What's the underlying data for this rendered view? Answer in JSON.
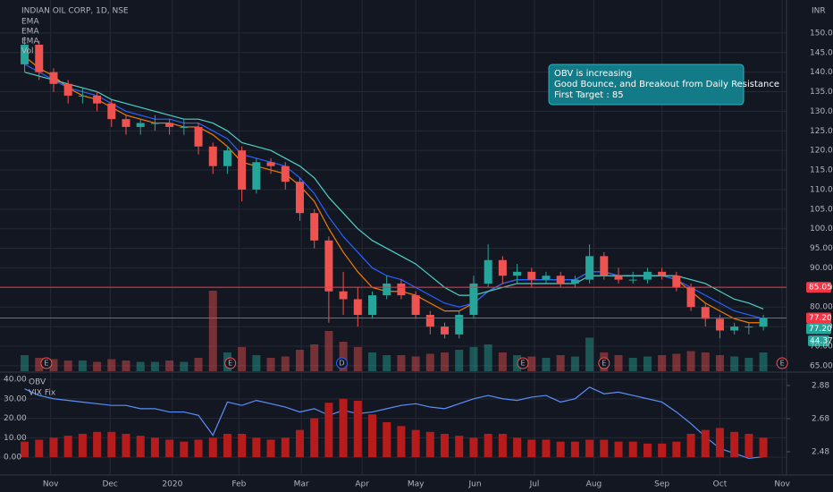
{
  "chart_data": {
    "type": "candlestick",
    "title": "INDIAN OIL CORP, 1D, NSE",
    "currency": "INR",
    "grid": true,
    "xlim": [
      -1.7,
      52.6
    ],
    "xticks": [
      {
        "value": 1.8,
        "label": "Nov"
      },
      {
        "value": 5.9,
        "label": "Dec"
      },
      {
        "value": 10.2,
        "label": "2020"
      },
      {
        "value": 14.8,
        "label": "Feb"
      },
      {
        "value": 19.1,
        "label": "Mar"
      },
      {
        "value": 23.3,
        "label": "Apr"
      },
      {
        "value": 27.0,
        "label": "May"
      },
      {
        "value": 31.1,
        "label": "Jun"
      },
      {
        "value": 35.2,
        "label": "Jul"
      },
      {
        "value": 39.3,
        "label": "Aug"
      },
      {
        "value": 44.0,
        "label": "Sep"
      },
      {
        "value": 48.0,
        "label": "Oct"
      },
      {
        "value": 52.3,
        "label": "Nov"
      }
    ],
    "ylim": [
      63.6,
      156.6
    ],
    "yticks": [
      {
        "value": 65,
        "label": "65.00"
      },
      {
        "value": 70,
        "label": "70.00"
      },
      {
        "value": 75,
        "label": "75.00"
      },
      {
        "value": 80,
        "label": "80.00"
      },
      {
        "value": 85,
        "label": "85.00"
      },
      {
        "value": 90,
        "label": "90.00"
      },
      {
        "value": 95,
        "label": "95.00"
      },
      {
        "value": 100,
        "label": "100.00"
      },
      {
        "value": 105,
        "label": "105.00"
      },
      {
        "value": 110,
        "label": "110.00"
      },
      {
        "value": 115,
        "label": "115.00"
      },
      {
        "value": 120,
        "label": "120.00"
      },
      {
        "value": 125,
        "label": "125.00"
      },
      {
        "value": 130,
        "label": "130.00"
      },
      {
        "value": 135,
        "label": "135.00"
      },
      {
        "value": 140,
        "label": "140.00"
      },
      {
        "value": 145,
        "label": "145.00"
      },
      {
        "value": 150,
        "label": "150.00"
      }
    ],
    "up_color": "#26a69a",
    "down_color": "#ef5350",
    "candles": {
      "open": [
        142,
        147,
        140,
        137,
        134,
        134,
        132,
        128,
        126,
        127,
        127,
        126,
        126,
        121,
        116,
        120,
        110,
        117,
        116,
        112,
        104,
        97,
        84,
        82,
        78,
        83,
        86,
        83,
        78,
        75,
        73,
        78,
        86,
        92,
        88,
        89,
        87,
        88,
        86,
        87,
        93,
        88,
        87,
        87,
        89,
        88,
        85,
        80,
        77,
        74,
        75,
        75
      ],
      "high": [
        149,
        148,
        141,
        138,
        136,
        135,
        133,
        129,
        128,
        129,
        128,
        128,
        127,
        122,
        121,
        121,
        118,
        118,
        117,
        113,
        105,
        98,
        89,
        85,
        84,
        88,
        87,
        84,
        79,
        76,
        79,
        88,
        96,
        93,
        91,
        90,
        89,
        89,
        88,
        96,
        94,
        90,
        89,
        90,
        90,
        89,
        86,
        81,
        78,
        76,
        76,
        78
      ],
      "low": [
        140,
        138,
        135,
        132,
        132,
        130,
        126,
        124,
        124,
        125,
        124,
        124,
        119,
        114,
        114,
        107,
        109,
        114,
        110,
        102,
        95,
        76,
        78,
        75,
        77,
        82,
        82,
        77,
        73,
        72,
        72,
        77,
        85,
        86,
        86,
        85,
        86,
        85,
        85,
        86,
        87,
        86,
        86,
        86,
        87,
        84,
        79,
        75,
        72,
        73,
        73,
        74
      ],
      "close": [
        147,
        140,
        137,
        134,
        134,
        132,
        128,
        126,
        127,
        127,
        126,
        126,
        121,
        116,
        120,
        110,
        117,
        116,
        112,
        104,
        97,
        84,
        82,
        78,
        83,
        86,
        83,
        78,
        75,
        73,
        78,
        86,
        92,
        88,
        89,
        87,
        88,
        86,
        87,
        93,
        88,
        87,
        87,
        89,
        88,
        85,
        80,
        77,
        74,
        75,
        75,
        77.2
      ]
    },
    "volume": {
      "name": "Vol",
      "values": [
        12,
        10,
        9,
        8,
        8,
        7,
        9,
        8,
        7,
        7,
        8,
        7,
        10,
        60,
        14,
        18,
        12,
        10,
        11,
        16,
        20,
        30,
        22,
        18,
        14,
        12,
        12,
        11,
        13,
        14,
        16,
        18,
        20,
        14,
        12,
        11,
        10,
        12,
        11,
        25,
        14,
        12,
        10,
        11,
        12,
        13,
        15,
        14,
        12,
        11,
        10,
        14
      ]
    },
    "series": [
      {
        "name": "EMA",
        "color": "#f57c00",
        "values": [
          144,
          141,
          139,
          136,
          134,
          133,
          131,
          129,
          128,
          127,
          127,
          126,
          126,
          124,
          121,
          117,
          116,
          115,
          114,
          111,
          107,
          100,
          94,
          89,
          85,
          84,
          84,
          83,
          81,
          79,
          79,
          81,
          84,
          86,
          87,
          87,
          87,
          87,
          87,
          89,
          89,
          88,
          88,
          88,
          88,
          87,
          84,
          81,
          79,
          77,
          76,
          76
        ]
      },
      {
        "name": "EMA",
        "color": "#2962ff",
        "values": [
          142,
          140,
          138,
          136,
          135,
          134,
          132,
          130,
          129,
          128,
          128,
          127,
          127,
          125,
          123,
          119,
          118,
          117,
          116,
          113,
          109,
          103,
          98,
          94,
          90,
          88,
          87,
          85,
          83,
          81,
          80,
          81,
          84,
          86,
          87,
          87,
          87,
          87,
          87,
          89,
          89,
          88,
          88,
          88,
          88,
          87,
          85,
          83,
          81,
          79,
          78,
          77
        ]
      },
      {
        "name": "EMA",
        "color": "#4dd0c4",
        "values": [
          140,
          139,
          138,
          137,
          136,
          135,
          133,
          132,
          131,
          130,
          129,
          128,
          128,
          127,
          125,
          122,
          121,
          120,
          118,
          116,
          113,
          108,
          104,
          100,
          97,
          95,
          93,
          91,
          88,
          85,
          83,
          83,
          84,
          85,
          86,
          86,
          86,
          86,
          86,
          88,
          88,
          88,
          88,
          88,
          88,
          88,
          87,
          86,
          84,
          82,
          81,
          79.5
        ]
      }
    ],
    "price_tags": [
      {
        "value": 85.05,
        "label": "85.05",
        "color": "#f23645"
      },
      {
        "value": 77.2,
        "label": "77.20",
        "color": "#f23645"
      },
      {
        "value": 77.2,
        "label": "77.20",
        "color": "#26a69a"
      }
    ],
    "badge": "44.37",
    "annotation": [
      "OBV is increasing",
      "Good Bounce, and Breakout from Daily Resistance",
      "First Target : 85"
    ],
    "events": [
      {
        "x": 1.5,
        "label": "E"
      },
      {
        "x": 14.2,
        "label": "E"
      },
      {
        "x": 21.9,
        "label": "D"
      },
      {
        "x": 34.4,
        "label": "E"
      },
      {
        "x": 40.0,
        "label": "E"
      },
      {
        "x": 52.3,
        "label": "E"
      }
    ],
    "lower": {
      "ylim": [
        -8.7,
        42.8
      ],
      "yticks": [
        {
          "value": 0,
          "label": "0.00"
        },
        {
          "value": 10,
          "label": "10.00"
        },
        {
          "value": 20,
          "label": "20.00"
        },
        {
          "value": 30,
          "label": "30.00"
        },
        {
          "value": 40,
          "label": "40.00"
        }
      ],
      "y2lim": [
        2.345,
        2.95
      ],
      "y2ticks": [
        2.48,
        2.68,
        2.88
      ],
      "series": [
        {
          "name": "OBV",
          "color": "#5b8ff9",
          "axis": "y2",
          "values": [
            2.86,
            2.82,
            2.8,
            2.79,
            2.78,
            2.77,
            2.76,
            2.76,
            2.74,
            2.74,
            2.72,
            2.72,
            2.7,
            2.58,
            2.78,
            2.76,
            2.79,
            2.77,
            2.75,
            2.72,
            2.74,
            2.7,
            2.73,
            2.71,
            2.72,
            2.74,
            2.76,
            2.77,
            2.75,
            2.74,
            2.77,
            2.8,
            2.82,
            2.8,
            2.79,
            2.81,
            2.82,
            2.78,
            2.8,
            2.87,
            2.83,
            2.84,
            2.82,
            2.8,
            2.78,
            2.72,
            2.65,
            2.57,
            2.5,
            2.47,
            2.44,
            2.45
          ]
        },
        {
          "name": "VIX Fix",
          "color": "#b71c1c",
          "values": [
            8,
            9,
            10,
            11,
            12,
            13,
            13,
            12,
            11,
            10,
            9,
            8,
            9,
            10,
            12,
            12,
            10,
            9,
            10,
            14,
            20,
            28,
            30,
            29,
            22,
            18,
            16,
            14,
            13,
            12,
            11,
            10,
            12,
            12,
            10,
            9,
            9,
            8,
            8,
            9,
            9,
            8,
            8,
            7,
            7,
            8,
            12,
            14,
            15,
            13,
            12,
            10
          ]
        }
      ]
    }
  }
}
